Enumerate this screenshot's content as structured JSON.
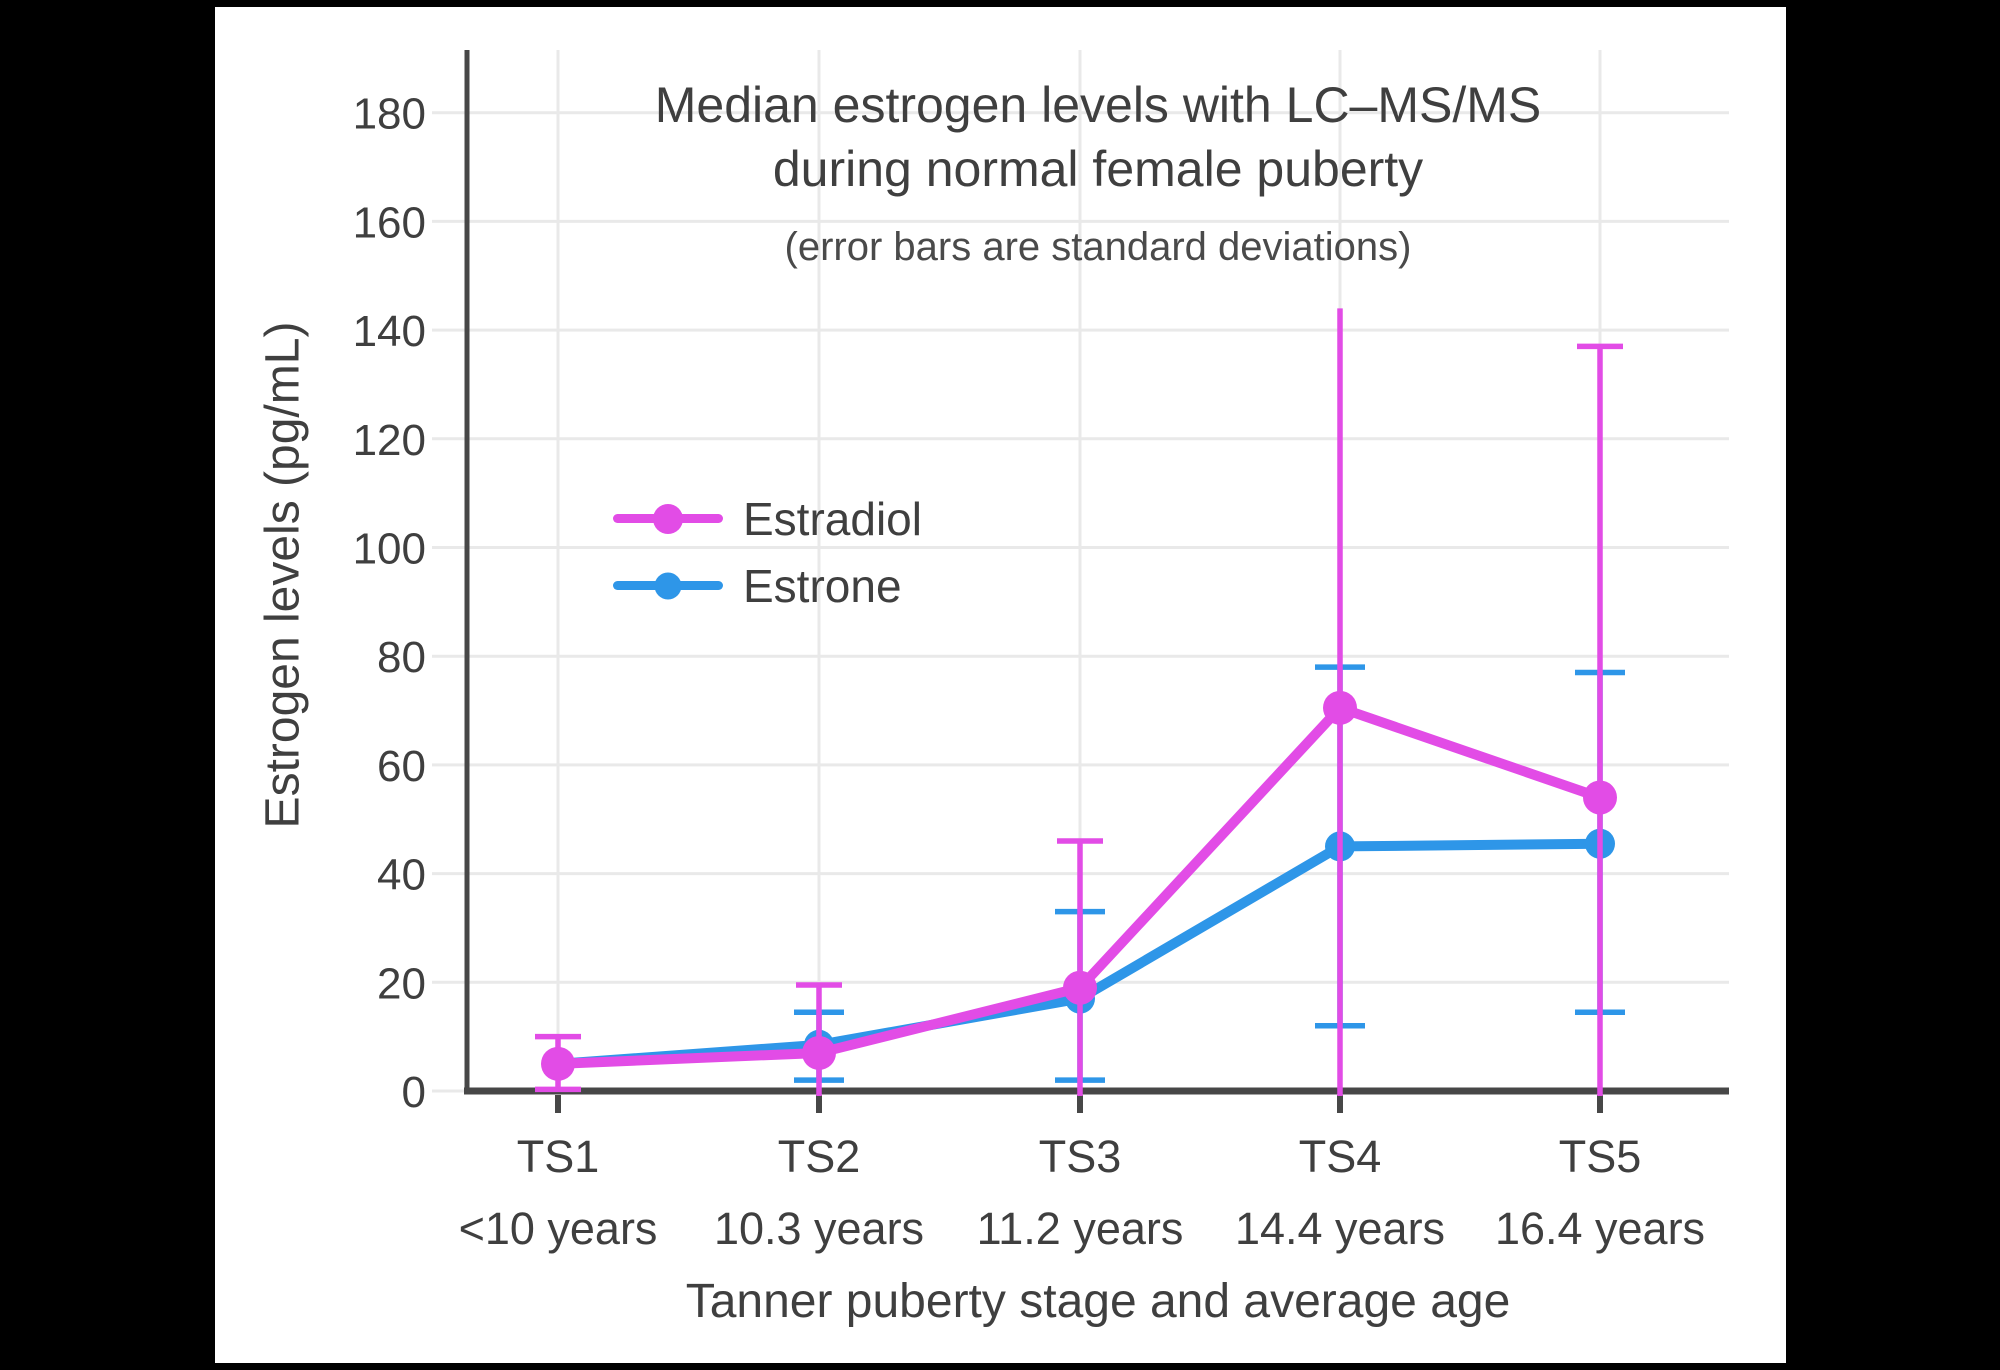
{
  "accent_colors": {
    "estradiol": "#E24CE6",
    "estrone": "#2E96E8",
    "text": "#3f3f3f",
    "axis": "#474747",
    "grid": "#e9e9e9",
    "panel_bg": "#ffffff",
    "frame_bg": "#000000"
  },
  "legend": {
    "items": [
      {
        "label": "Estradiol",
        "color": "#E24CE6"
      },
      {
        "label": "Estrone",
        "color": "#2E96E8"
      }
    ]
  },
  "chart_data": {
    "type": "line",
    "title_line1": "Median estrogen levels with LC–MS/MS",
    "title_line2": "during normal female puberty",
    "subtitle": "(error bars are standard deviations)",
    "xlabel": "Tanner puberty stage and average age",
    "ylabel": "Estrogen levels (pg/mL)",
    "categories": [
      "TS1",
      "TS2",
      "TS3",
      "TS4",
      "TS5"
    ],
    "category_ages": [
      "<10 years",
      "10.3 years",
      "11.2 years",
      "14.4 years",
      "16.4 years"
    ],
    "yticks": [
      0,
      20,
      40,
      60,
      80,
      100,
      120,
      140,
      160,
      180
    ],
    "ylim": [
      0,
      191
    ],
    "grid": true,
    "legend_position": "inside-upper-left",
    "error_bar_meaning": "standard deviations",
    "series": [
      {
        "name": "Estrone",
        "color": "#2E96E8",
        "values": [
          5,
          8.5,
          17,
          45,
          45.5
        ],
        "whisker_high": [
          null,
          14.5,
          33,
          78,
          77
        ],
        "whisker_high_cap": [
          false,
          true,
          true,
          true,
          true
        ],
        "whisker_low": [
          null,
          2,
          2,
          12,
          14.5
        ],
        "whisker_low_cap": [
          false,
          true,
          true,
          true,
          true
        ]
      },
      {
        "name": "Estradiol",
        "color": "#E24CE6",
        "values": [
          5,
          7,
          19,
          70.5,
          54
        ],
        "whisker_high": [
          10,
          19.5,
          46,
          144,
          137
        ],
        "whisker_high_cap": [
          true,
          true,
          true,
          false,
          true
        ],
        "whisker_low": [
          0.3,
          null,
          null,
          null,
          null
        ],
        "whisker_low_cap": [
          true,
          false,
          false,
          false,
          false
        ]
      }
    ]
  }
}
